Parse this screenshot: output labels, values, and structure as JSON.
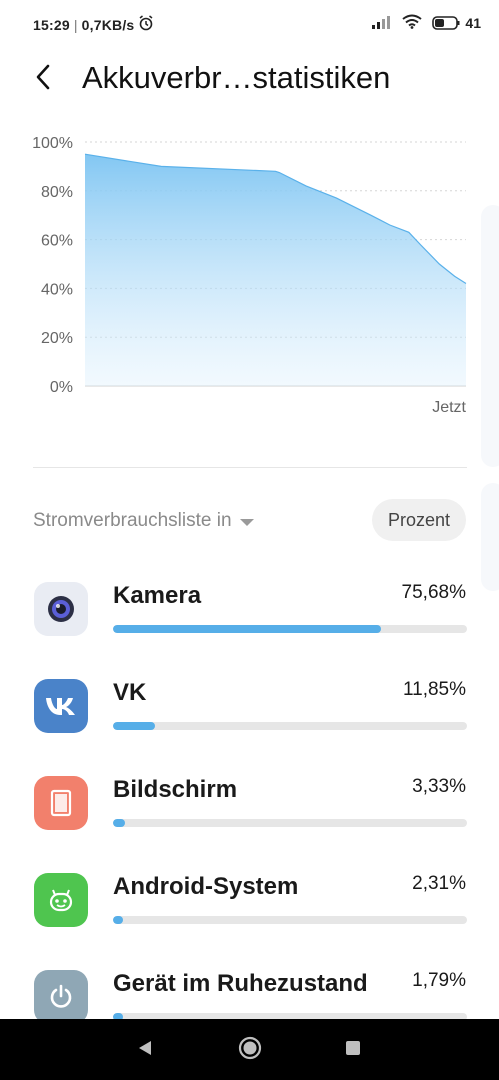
{
  "status_bar": {
    "time": "15:29",
    "network_speed": "0,7KB/s",
    "battery_level": "41",
    "icons": [
      "alarm-icon",
      "signal-icon",
      "wifi-icon",
      "battery-icon"
    ]
  },
  "header": {
    "title": "Akkuverbr…statistiken",
    "back_icon": "arrow-left-icon"
  },
  "chart_data": {
    "type": "area",
    "y_ticks": [
      "100%",
      "80%",
      "60%",
      "40%",
      "20%",
      "0%"
    ],
    "x_label_end": "Jetzt",
    "ylim": [
      0,
      100
    ],
    "grid": true,
    "color": "#7cc4f2",
    "x": [
      0,
      0.2,
      0.5,
      0.51,
      0.58,
      0.66,
      0.75,
      0.8,
      0.85,
      0.88,
      0.93,
      0.97,
      1.0
    ],
    "y": [
      95,
      90,
      88,
      87.5,
      82,
      77,
      70,
      66,
      63,
      58,
      50,
      45,
      42
    ]
  },
  "list": {
    "title": "Stromverbrauchsliste in",
    "unit_button": "Prozent",
    "apps": [
      {
        "name": "Kamera",
        "percent": "75,68%",
        "fraction": 0.7568,
        "icon": "camera-icon",
        "color": "#e9ecf3"
      },
      {
        "name": "VK",
        "percent": "11,85%",
        "fraction": 0.1185,
        "icon": "vk-icon",
        "color": "#4a83c9"
      },
      {
        "name": "Bildschirm",
        "percent": "3,33%",
        "fraction": 0.0333,
        "icon": "screen-icon",
        "color": "#f2806c"
      },
      {
        "name": "Android-System",
        "percent": "2,31%",
        "fraction": 0.0231,
        "icon": "android-icon",
        "color": "#4fc54f"
      },
      {
        "name": "Gerät im Ruhezustand",
        "percent": "1,79%",
        "fraction": 0.0179,
        "icon": "power-icon",
        "color": "#8fa7b5"
      }
    ]
  },
  "nav_bar": {
    "buttons": [
      "back-triangle-icon",
      "home-circle-icon",
      "recents-square-icon"
    ]
  }
}
